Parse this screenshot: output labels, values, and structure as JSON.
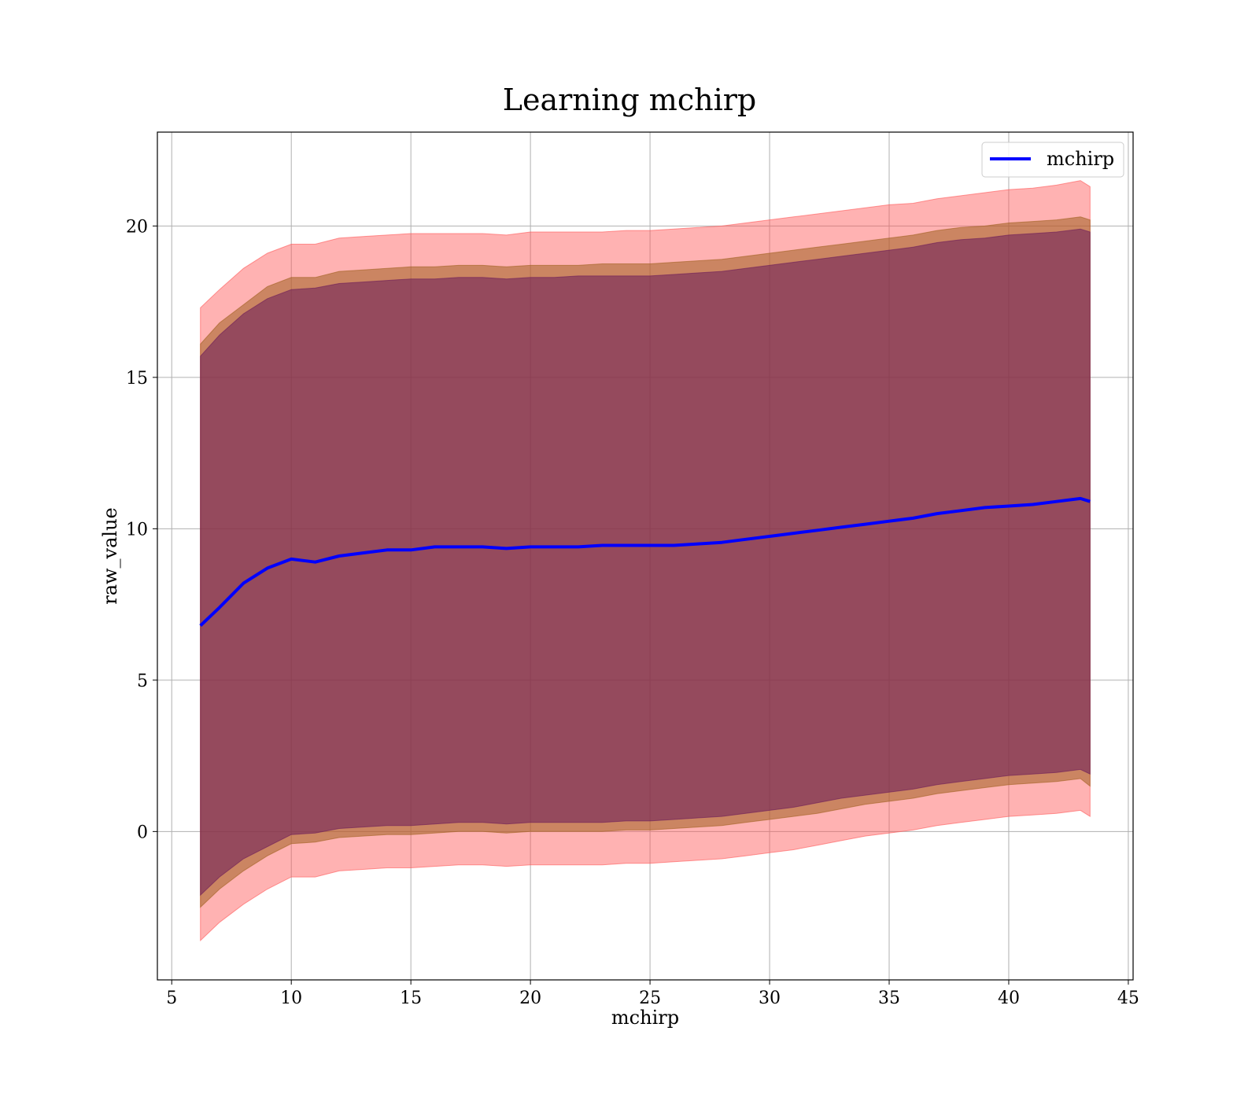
{
  "chart_data": {
    "type": "area",
    "title": "Learning mchirp",
    "xlabel": "mchirp",
    "ylabel": "raw_value",
    "xlim": [
      4.4,
      45.2
    ],
    "ylim": [
      -4.9,
      23.1
    ],
    "xticks": [
      5,
      10,
      15,
      20,
      25,
      30,
      35,
      40,
      45
    ],
    "yticks": [
      0,
      5,
      10,
      15,
      20
    ],
    "grid": true,
    "legend": {
      "position": "upper right",
      "entries": [
        "mchirp"
      ]
    },
    "colors": {
      "line": "#0000ff",
      "outer_band": "#ff5555",
      "middle_band": "#a06020",
      "inner_band": "#6a1a5a",
      "grid": "#b0b0b0"
    },
    "series": [
      {
        "name": "mchirp",
        "x": [
          6.2,
          7,
          8,
          9,
          10,
          11,
          12,
          13,
          14,
          15,
          16,
          17,
          18,
          19,
          20,
          21,
          22,
          23,
          24,
          25,
          26,
          27,
          28,
          29,
          30,
          31,
          32,
          33,
          34,
          35,
          36,
          37,
          38,
          39,
          40,
          41,
          42,
          43,
          43.4
        ],
        "y": [
          6.8,
          7.4,
          8.2,
          8.7,
          9.0,
          8.9,
          9.1,
          9.2,
          9.3,
          9.3,
          9.4,
          9.4,
          9.4,
          9.35,
          9.4,
          9.4,
          9.4,
          9.45,
          9.45,
          9.45,
          9.45,
          9.5,
          9.55,
          9.65,
          9.75,
          9.85,
          9.95,
          10.05,
          10.15,
          10.25,
          10.35,
          10.5,
          10.6,
          10.7,
          10.75,
          10.8,
          10.9,
          11.0,
          10.9
        ]
      }
    ],
    "bands": [
      {
        "name": "outer",
        "x": [
          6.2,
          7,
          8,
          9,
          10,
          11,
          12,
          13,
          14,
          15,
          16,
          17,
          18,
          19,
          20,
          21,
          22,
          23,
          24,
          25,
          26,
          27,
          28,
          29,
          30,
          31,
          32,
          33,
          34,
          35,
          36,
          37,
          38,
          39,
          40,
          41,
          42,
          43,
          43.4
        ],
        "lower": [
          -3.6,
          -3.0,
          -2.4,
          -1.9,
          -1.5,
          -1.5,
          -1.3,
          -1.25,
          -1.2,
          -1.2,
          -1.15,
          -1.1,
          -1.1,
          -1.15,
          -1.1,
          -1.1,
          -1.1,
          -1.1,
          -1.05,
          -1.05,
          -1.0,
          -0.95,
          -0.9,
          -0.8,
          -0.7,
          -0.6,
          -0.45,
          -0.3,
          -0.15,
          -0.05,
          0.05,
          0.2,
          0.3,
          0.4,
          0.5,
          0.55,
          0.6,
          0.7,
          0.5
        ],
        "upper": [
          17.3,
          17.9,
          18.6,
          19.1,
          19.4,
          19.4,
          19.6,
          19.65,
          19.7,
          19.75,
          19.75,
          19.75,
          19.75,
          19.7,
          19.8,
          19.8,
          19.8,
          19.8,
          19.85,
          19.85,
          19.9,
          19.95,
          20.0,
          20.1,
          20.2,
          20.3,
          20.4,
          20.5,
          20.6,
          20.7,
          20.75,
          20.9,
          21.0,
          21.1,
          21.2,
          21.25,
          21.35,
          21.5,
          21.3
        ]
      },
      {
        "name": "middle",
        "x": [
          6.2,
          7,
          8,
          9,
          10,
          11,
          12,
          13,
          14,
          15,
          16,
          17,
          18,
          19,
          20,
          21,
          22,
          23,
          24,
          25,
          26,
          27,
          28,
          29,
          30,
          31,
          32,
          33,
          34,
          35,
          36,
          37,
          38,
          39,
          40,
          41,
          42,
          43,
          43.4
        ],
        "lower": [
          -2.5,
          -1.9,
          -1.3,
          -0.8,
          -0.4,
          -0.35,
          -0.2,
          -0.15,
          -0.1,
          -0.1,
          -0.05,
          0.0,
          0.0,
          -0.05,
          0.0,
          0.0,
          0.0,
          0.0,
          0.05,
          0.05,
          0.1,
          0.15,
          0.2,
          0.3,
          0.4,
          0.5,
          0.6,
          0.75,
          0.9,
          1.0,
          1.1,
          1.25,
          1.35,
          1.45,
          1.55,
          1.6,
          1.65,
          1.75,
          1.5
        ],
        "upper": [
          16.1,
          16.8,
          17.4,
          18.0,
          18.3,
          18.3,
          18.5,
          18.55,
          18.6,
          18.65,
          18.65,
          18.7,
          18.7,
          18.65,
          18.7,
          18.7,
          18.7,
          18.75,
          18.75,
          18.75,
          18.8,
          18.85,
          18.9,
          19.0,
          19.1,
          19.2,
          19.3,
          19.4,
          19.5,
          19.6,
          19.7,
          19.85,
          19.95,
          20.0,
          20.1,
          20.15,
          20.2,
          20.3,
          20.2
        ]
      },
      {
        "name": "inner",
        "x": [
          6.2,
          7,
          8,
          9,
          10,
          11,
          12,
          13,
          14,
          15,
          16,
          17,
          18,
          19,
          20,
          21,
          22,
          23,
          24,
          25,
          26,
          27,
          28,
          29,
          30,
          31,
          32,
          33,
          34,
          35,
          36,
          37,
          38,
          39,
          40,
          41,
          42,
          43,
          43.4
        ],
        "lower": [
          -2.1,
          -1.5,
          -0.9,
          -0.5,
          -0.1,
          -0.05,
          0.1,
          0.15,
          0.2,
          0.2,
          0.25,
          0.3,
          0.3,
          0.25,
          0.3,
          0.3,
          0.3,
          0.3,
          0.35,
          0.35,
          0.4,
          0.45,
          0.5,
          0.6,
          0.7,
          0.8,
          0.95,
          1.1,
          1.2,
          1.3,
          1.4,
          1.55,
          1.65,
          1.75,
          1.85,
          1.9,
          1.95,
          2.05,
          1.9
        ],
        "upper": [
          15.7,
          16.4,
          17.1,
          17.6,
          17.9,
          17.95,
          18.1,
          18.15,
          18.2,
          18.25,
          18.25,
          18.3,
          18.3,
          18.25,
          18.3,
          18.3,
          18.35,
          18.35,
          18.35,
          18.35,
          18.4,
          18.45,
          18.5,
          18.6,
          18.7,
          18.8,
          18.9,
          19.0,
          19.1,
          19.2,
          19.3,
          19.45,
          19.55,
          19.6,
          19.7,
          19.75,
          19.8,
          19.9,
          19.8
        ]
      }
    ]
  }
}
